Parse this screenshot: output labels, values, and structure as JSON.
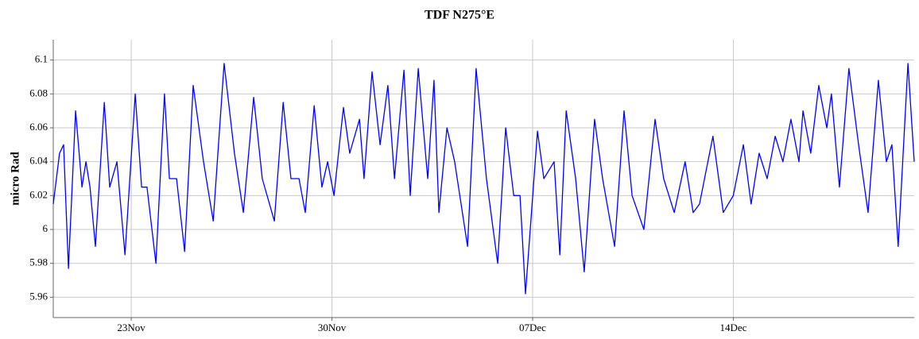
{
  "chart_data": {
    "type": "line",
    "title": "TDF N275°E",
    "y_label": "micro Rad",
    "x": [
      20.28,
      20.5,
      20.64,
      20.81,
      21.06,
      21.28,
      21.42,
      21.56,
      21.75,
      22.06,
      22.25,
      22.5,
      22.78,
      23.14,
      23.36,
      23.55,
      23.86,
      24.16,
      24.33,
      24.58,
      24.86,
      25.16,
      25.52,
      25.86,
      26.24,
      26.6,
      26.91,
      27.27,
      27.57,
      27.99,
      28.3,
      28.57,
      28.85,
      29.07,
      29.38,
      29.65,
      29.85,
      30.07,
      30.4,
      30.62,
      30.96,
      31.12,
      31.4,
      31.68,
      31.95,
      32.18,
      32.51,
      32.73,
      33.01,
      33.34,
      33.56,
      33.73,
      34.01,
      34.28,
      34.73,
      35.03,
      35.39,
      35.78,
      36.06,
      36.34,
      36.56,
      36.75,
      37.17,
      37.39,
      37.75,
      37.95,
      38.17,
      38.5,
      38.8,
      39.16,
      39.44,
      39.86,
      40.19,
      40.47,
      40.88,
      41.27,
      41.57,
      41.94,
      42.32,
      42.6,
      42.82,
      43.29,
      43.65,
      44.0,
      44.35,
      44.62,
      44.9,
      45.18,
      45.46,
      45.73,
      46.01,
      46.29,
      46.43,
      46.7,
      46.98,
      47.26,
      47.42,
      47.7,
      48.03,
      48.37,
      48.7,
      49.06,
      49.34,
      49.53,
      49.75,
      50.09,
      50.31
    ],
    "series": [
      {
        "color": "#0000ff",
        "values": [
          6.015,
          6.045,
          6.05,
          5.977,
          6.07,
          6.025,
          6.04,
          6.025,
          5.99,
          6.075,
          6.025,
          6.04,
          5.985,
          6.08,
          6.025,
          6.025,
          5.98,
          6.08,
          6.03,
          6.03,
          5.987,
          6.085,
          6.04,
          6.005,
          6.098,
          6.045,
          6.01,
          6.078,
          6.03,
          6.005,
          6.075,
          6.03,
          6.03,
          6.01,
          6.073,
          6.025,
          6.04,
          6.02,
          6.072,
          6.045,
          6.065,
          6.03,
          6.093,
          6.05,
          6.085,
          6.03,
          6.094,
          6.02,
          6.095,
          6.03,
          6.088,
          6.01,
          6.06,
          6.04,
          5.99,
          6.095,
          6.03,
          5.98,
          6.06,
          6.02,
          6.02,
          5.962,
          6.058,
          6.03,
          6.04,
          5.985,
          6.07,
          6.03,
          5.975,
          6.065,
          6.03,
          5.99,
          6.07,
          6.02,
          6.0,
          6.065,
          6.03,
          6.01,
          6.04,
          6.01,
          6.015,
          6.055,
          6.01,
          6.02,
          6.05,
          6.015,
          6.045,
          6.03,
          6.055,
          6.04,
          6.065,
          6.04,
          6.07,
          6.045,
          6.085,
          6.06,
          6.08,
          6.025,
          6.095,
          6.05,
          6.01,
          6.088,
          6.04,
          6.05,
          5.99,
          6.098,
          6.04
        ]
      }
    ],
    "xlim": [
      20.28,
      50.31
    ],
    "xticks": [
      {
        "value": 23,
        "label": "23Nov"
      },
      {
        "value": 30,
        "label": "30Nov"
      },
      {
        "value": 37,
        "label": "07Dec"
      },
      {
        "value": 44,
        "label": "14Dec"
      }
    ],
    "ylim": [
      5.948,
      6.112
    ],
    "yticks": [
      6.1,
      6.08,
      6.06,
      6.04,
      6.02,
      6,
      5.98,
      5.96
    ],
    "grid": true
  }
}
